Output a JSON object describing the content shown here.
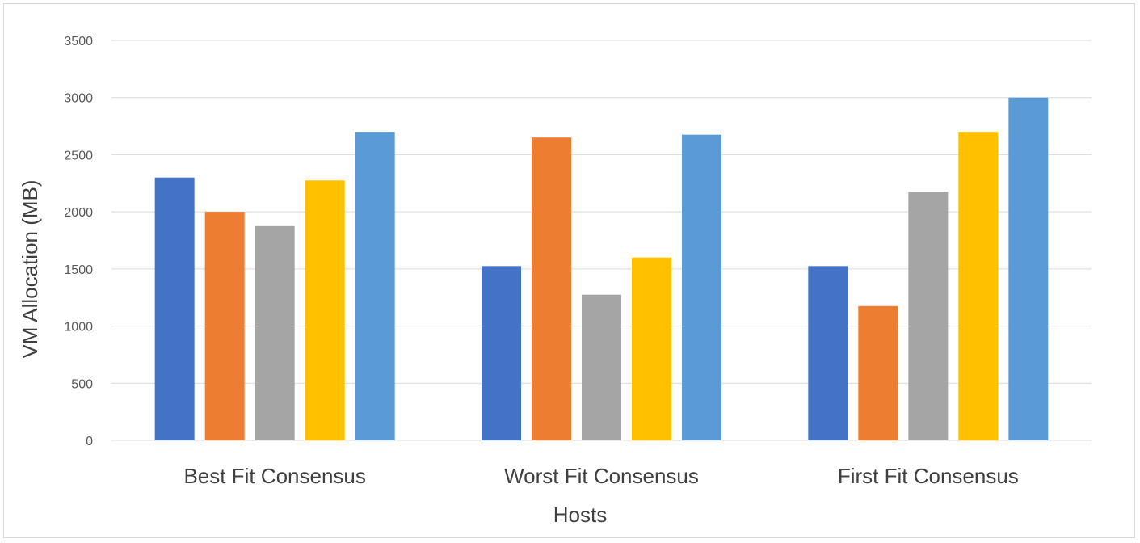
{
  "chart_data": {
    "type": "bar",
    "title": "",
    "xlabel": "Hosts",
    "ylabel": "VM Allocation (MB)",
    "ylim": [
      0,
      3500
    ],
    "yticks": [
      0,
      500,
      1000,
      1500,
      2000,
      2500,
      3000,
      3500
    ],
    "grid": true,
    "legend": "none",
    "categories": [
      "Best Fit Consensus",
      "Worst Fit Consensus",
      "First Fit Consensus"
    ],
    "series": [
      {
        "color": "#4472c4",
        "values": [
          2300,
          1525,
          1525
        ]
      },
      {
        "color": "#ed7d31",
        "values": [
          2000,
          2650,
          1175
        ]
      },
      {
        "color": "#a5a5a5",
        "values": [
          1875,
          1275,
          2175
        ]
      },
      {
        "color": "#ffc000",
        "values": [
          2275,
          1600,
          2700
        ]
      },
      {
        "color": "#5b9bd5",
        "values": [
          2700,
          2675,
          3000
        ]
      }
    ]
  }
}
